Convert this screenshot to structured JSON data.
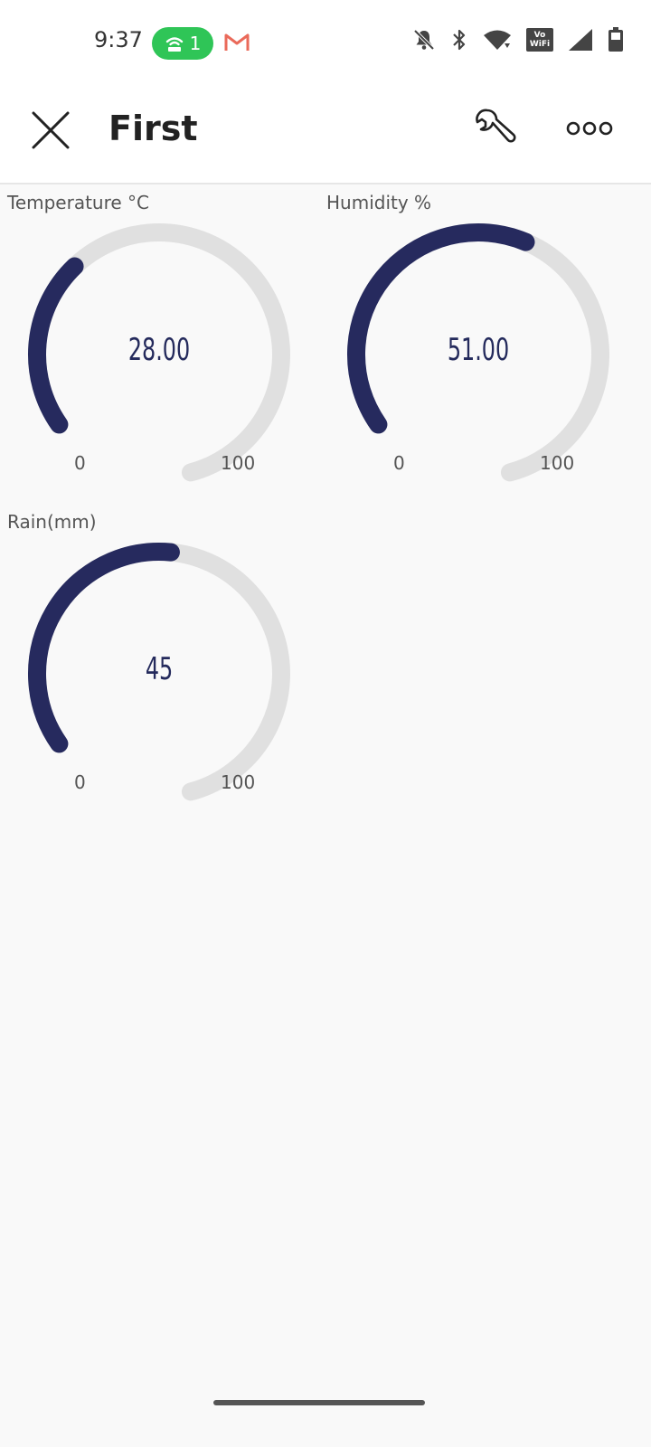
{
  "status_bar": {
    "time": "9:37",
    "hotspot_count": "1",
    "icons": [
      "hotspot-icon",
      "gmail-icon",
      "notifications-off-icon",
      "bluetooth-icon",
      "wifi-icon",
      "vowifi-icon",
      "cell-signal-icon",
      "battery-icon"
    ],
    "vowifi_top": "Vo",
    "vowifi_bottom": "WiFi"
  },
  "app_bar": {
    "title": "First",
    "icons": [
      "close-icon",
      "wrench-icon",
      "more-icon"
    ]
  },
  "widgets": [
    {
      "label": "Temperature °C",
      "value": "28.00",
      "value_num": 28,
      "min": "0",
      "max": "100"
    },
    {
      "label": "Humidity %",
      "value": "51.00",
      "value_num": 51,
      "min": "0",
      "max": "100"
    },
    {
      "label": "Rain(mm)",
      "value": "45",
      "value_num": 45,
      "min": "0",
      "max": "100"
    }
  ],
  "colors": {
    "gauge_fill": "#262a5e",
    "gauge_track": "#e0e0e0",
    "hotspot_pill": "#2fc557",
    "gmail": "#ea6a5a"
  }
}
